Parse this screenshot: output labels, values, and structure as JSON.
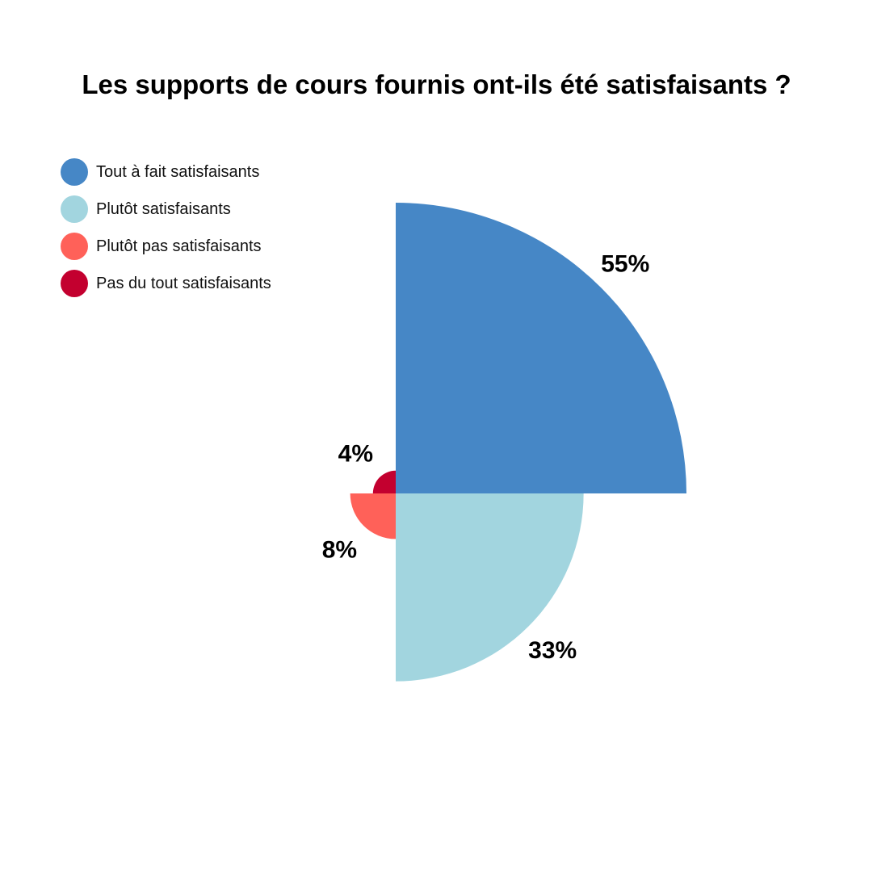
{
  "chart_data": {
    "type": "polar-area",
    "title": "Les supports de cours fournis ont-ils été satisfaisants ?",
    "legend_position": "top-left",
    "categories": [
      "Tout à fait satisfaisants",
      "Plutôt satisfaisants",
      "Plutôt pas satisfaisants",
      "Pas du tout satisfaisants"
    ],
    "values": [
      55,
      33,
      8,
      4
    ],
    "labels": [
      "55%",
      "33%",
      "8%",
      "4%"
    ],
    "colors": [
      "#4687C6",
      "#A2D5DF",
      "#FF6159",
      "#C3002F"
    ]
  }
}
